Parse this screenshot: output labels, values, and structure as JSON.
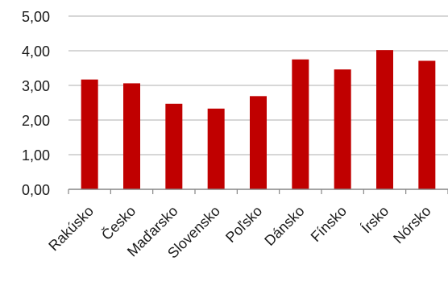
{
  "chart_data": {
    "type": "bar",
    "categories": [
      "Rakúsko",
      "Česko",
      "Maďarsko",
      "Slovensko",
      "Poľsko",
      "Dánsko",
      "Fínsko",
      "Írsko",
      "Nórsko"
    ],
    "values": [
      3.17,
      3.06,
      2.47,
      2.33,
      2.69,
      3.75,
      3.46,
      4.02,
      3.71
    ],
    "ylim": [
      0,
      5
    ],
    "yticks": [
      "0,00",
      "1,00",
      "2,00",
      "3,00",
      "4,00",
      "5,00"
    ],
    "grid": true,
    "legend": "none",
    "colors": {
      "bar": "#C00000",
      "grid": "#BFBFBF",
      "axis": "#868686"
    }
  }
}
